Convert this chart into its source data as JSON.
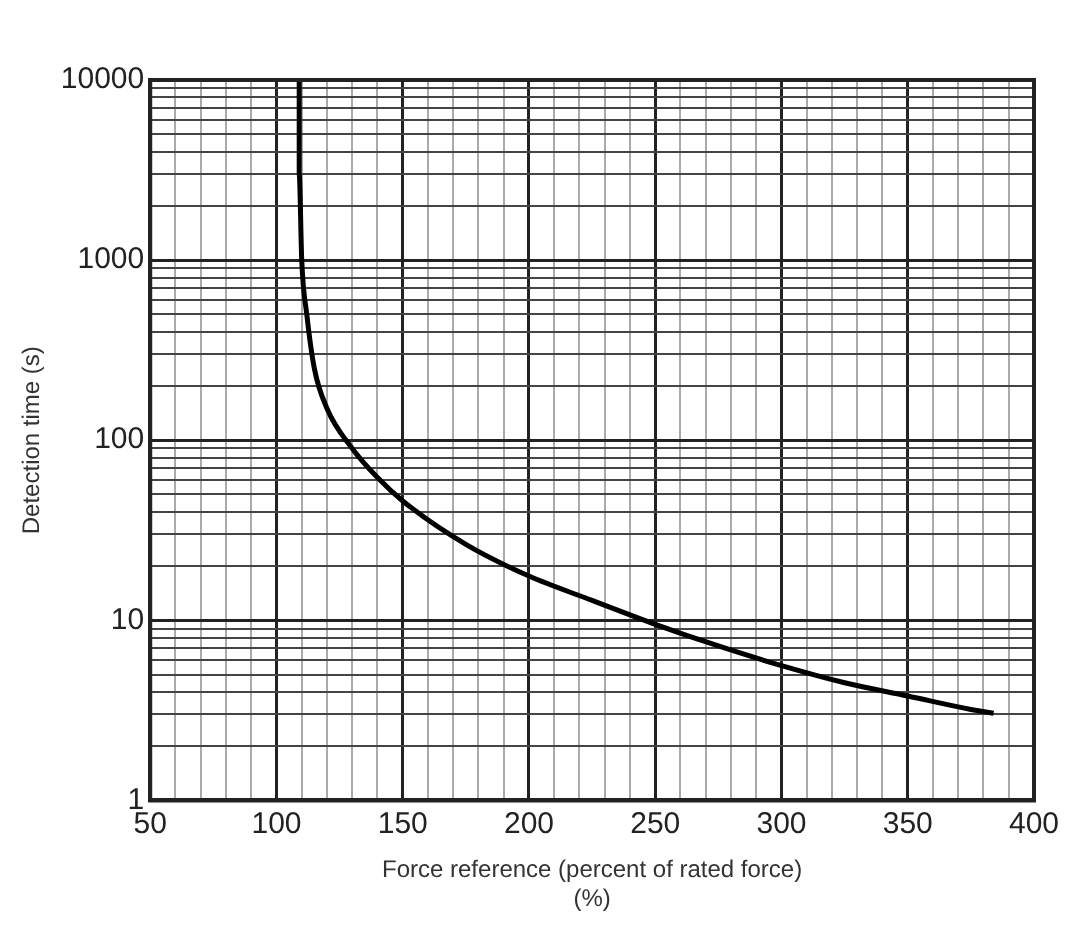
{
  "chart_data": {
    "type": "line",
    "xlabel": "Force reference (percent of rated force)\n(%)",
    "ylabel": "Detection time (s)",
    "log": "y",
    "grid": true,
    "marker": "none",
    "line_style": "solid",
    "xlim": [
      50,
      400
    ],
    "xticks": [
      50,
      100,
      150,
      200,
      250,
      300,
      350,
      400
    ],
    "ylim": [
      1,
      10000
    ],
    "yticks": [
      1,
      10,
      100,
      1000,
      10000
    ],
    "series": [
      {
        "color": "#000000",
        "x": [
          109,
          109,
          110,
          112,
          115,
          120,
          130,
          140,
          150,
          175,
          200,
          225,
          250,
          275,
          300,
          325,
          350,
          375,
          384
        ],
        "values": [
          10000,
          3000,
          1000,
          500,
          250,
          150,
          90,
          62,
          46,
          26.4,
          17.6,
          12.9,
          9.5,
          7.2,
          5.6,
          4.5,
          3.8,
          3.2,
          3.05
        ]
      }
    ]
  }
}
